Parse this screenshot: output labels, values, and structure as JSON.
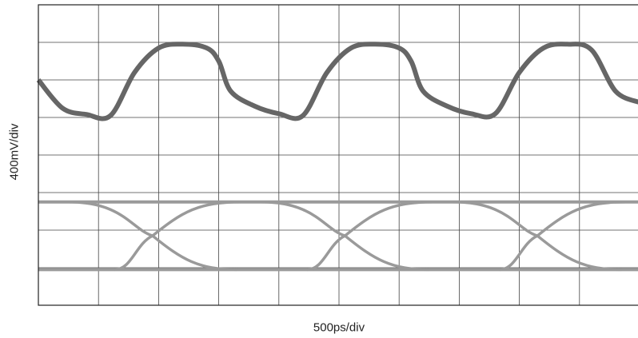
{
  "chart_data": {
    "type": "line",
    "title": "",
    "xlabel": "500ps/div",
    "ylabel": "400mV/div",
    "grid": true,
    "xlim": [
      0,
      10
    ],
    "ylim": [
      0,
      8
    ],
    "panels": [
      {
        "name": "",
        "x": [
          0.0,
          0.4,
          0.8,
          1.2,
          1.6,
          2.0,
          2.4,
          2.8,
          3.0,
          3.2,
          3.6,
          4.0,
          4.4,
          4.8,
          5.2,
          5.6,
          6.0,
          6.2,
          6.4,
          6.8,
          7.2,
          7.6,
          8.0,
          8.4,
          8.8,
          9.2,
          9.6,
          10.0
        ],
        "y": [
          6.0,
          5.25,
          5.08,
          5.05,
          6.2,
          6.85,
          6.95,
          6.85,
          6.5,
          5.7,
          5.3,
          5.1,
          5.05,
          6.2,
          6.85,
          6.95,
          6.85,
          6.5,
          5.7,
          5.3,
          5.1,
          5.1,
          6.2,
          6.85,
          6.95,
          6.8,
          5.7,
          5.4
        ]
      }
    ],
    "eye": {
      "high": 2.75,
      "low": 0.95,
      "crossings": [
        1.9,
        5.1,
        8.3
      ]
    }
  }
}
